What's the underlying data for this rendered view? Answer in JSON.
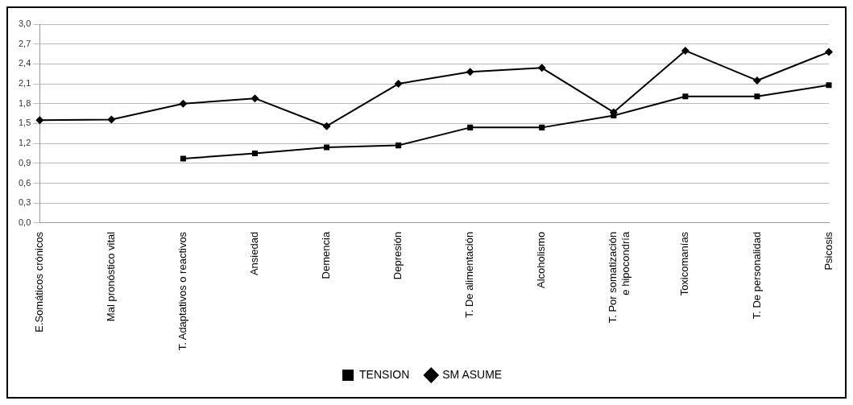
{
  "chart_data": {
    "type": "line",
    "categories": [
      "E.Somáticos crónicos",
      "Mal pronóstico vital",
      "T. Adaptativos o reactivos",
      "Ansiedad",
      "Demencia",
      "Depresión",
      "T. De alimentación",
      "Alcoholismo",
      "T. Por somatización e hipocondría",
      "Toxicomanías",
      "T. De personalidad",
      "Psicosis"
    ],
    "series": [
      {
        "name": "TENSION",
        "color": "#000000",
        "marker": "square",
        "values": [
          null,
          null,
          0.97,
          1.05,
          1.14,
          1.17,
          1.44,
          1.44,
          1.62,
          1.91,
          1.91,
          2.08
        ]
      },
      {
        "name": "SM ASUME",
        "color": "#000000",
        "marker": "diamond",
        "values": [
          1.55,
          1.56,
          1.8,
          1.88,
          1.46,
          2.1,
          2.28,
          2.34,
          1.67,
          2.6,
          2.15,
          2.58
        ]
      }
    ],
    "ylim": [
      0,
      3
    ],
    "yticks": [
      {
        "value": 0,
        "label": "0,0"
      },
      {
        "value": 0.3,
        "label": "0,3"
      },
      {
        "value": 0.6,
        "label": "0,6"
      },
      {
        "value": 0.9,
        "label": "0,9"
      },
      {
        "value": 1.2,
        "label": "1,2"
      },
      {
        "value": 1.5,
        "label": "1,5"
      },
      {
        "value": 1.8,
        "label": "1,8"
      },
      {
        "value": 2.1,
        "label": "2,1"
      },
      {
        "value": 2.4,
        "label": "2,4"
      },
      {
        "value": 2.7,
        "label": "2,7"
      },
      {
        "value": 3,
        "label": "3,0"
      }
    ],
    "grid": "y",
    "legend": "bottom",
    "line_style": "solid"
  }
}
